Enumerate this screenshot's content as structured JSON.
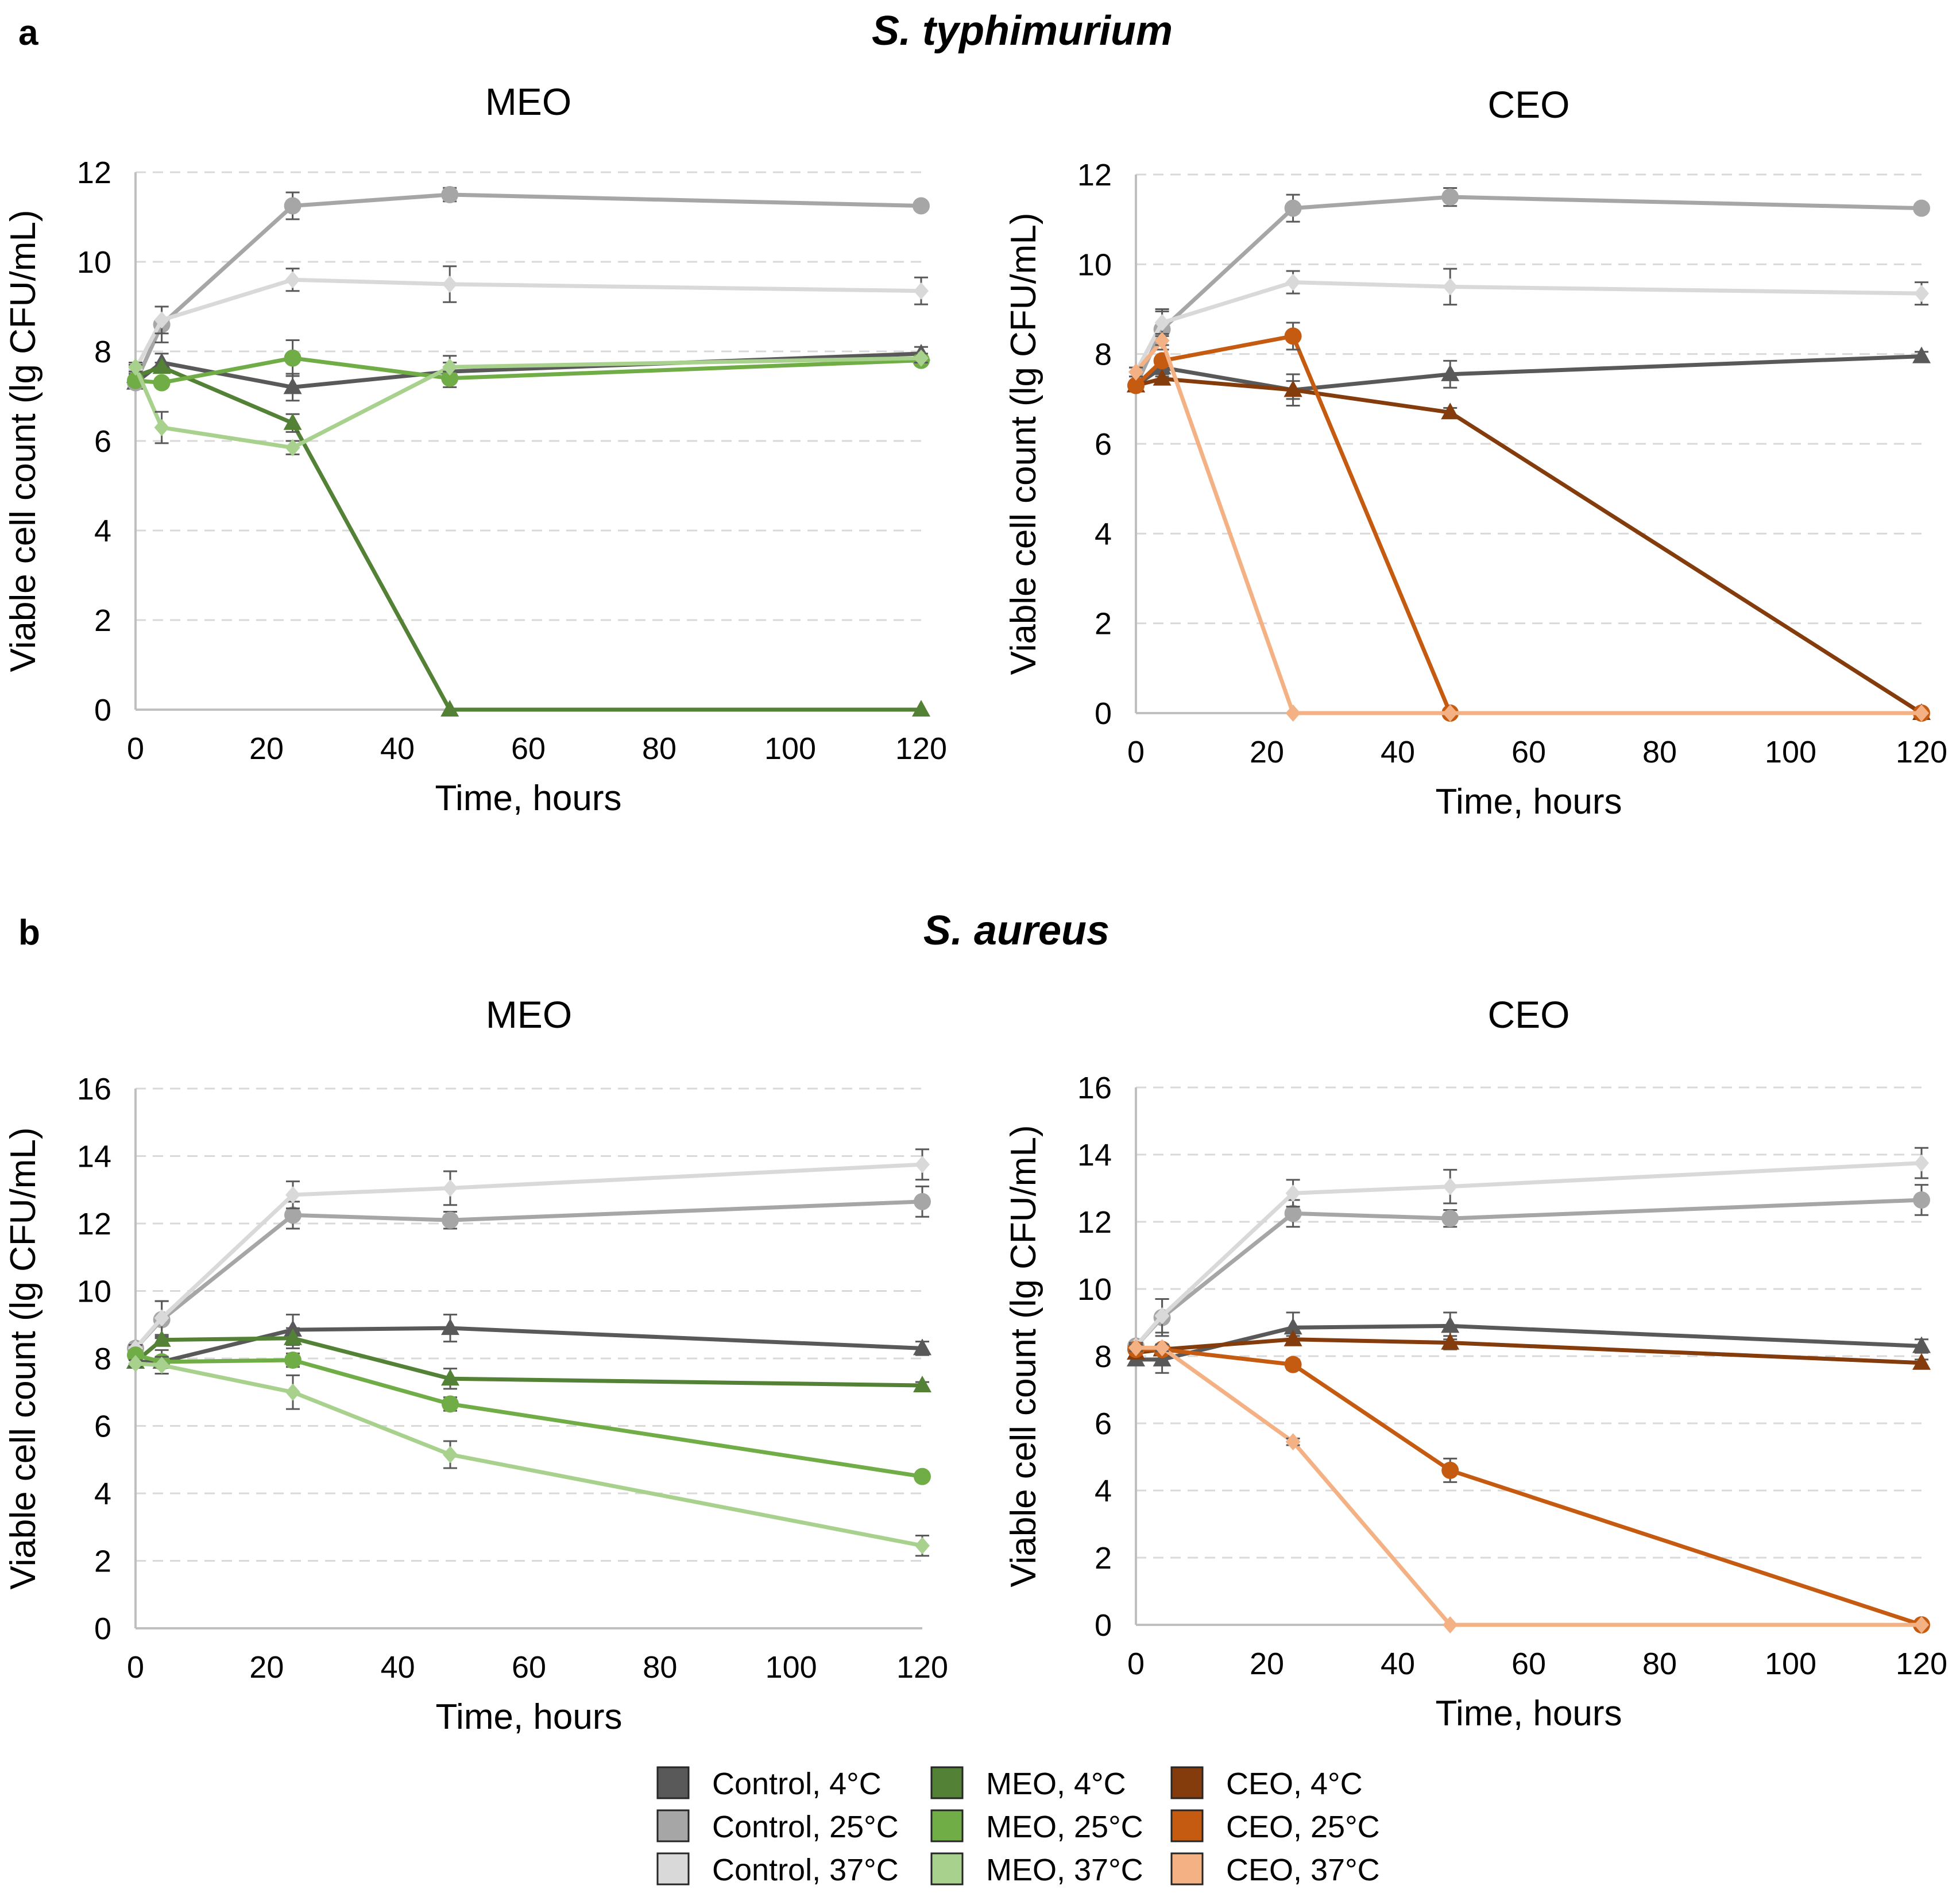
{
  "panels": [
    {
      "letter": "a",
      "organism": "S. typhimurium"
    },
    {
      "letter": "b",
      "organism": "S. aureus"
    }
  ],
  "series_styles": [
    {
      "name": "Control, 4°C",
      "color": "#595959",
      "marker": "triangle"
    },
    {
      "name": "Control, 25°C",
      "color": "#a6a6a6",
      "marker": "circle"
    },
    {
      "name": "Control, 37°C",
      "color": "#d9d9d9",
      "marker": "diamond"
    },
    {
      "name": "MEO, 4°C",
      "color": "#538135",
      "marker": "triangle"
    },
    {
      "name": "MEO, 25°C",
      "color": "#70ad47",
      "marker": "circle"
    },
    {
      "name": "MEO, 37°C",
      "color": "#a9d18e",
      "marker": "diamond"
    },
    {
      "name": "CEO, 4°C",
      "color": "#843c0c",
      "marker": "triangle"
    },
    {
      "name": "CEO, 25°C",
      "color": "#c55a11",
      "marker": "circle"
    },
    {
      "name": "CEO, 37°C",
      "color": "#f4b183",
      "marker": "diamond"
    }
  ],
  "chart_data": [
    {
      "type": "line",
      "panel": "a",
      "title": "MEO",
      "xlabel": "Time, hours",
      "ylabel": "Viable cell count (lg CFU/mL)",
      "xlim": [
        0,
        120
      ],
      "ylim": [
        0,
        12
      ],
      "xticks": [
        0,
        20,
        40,
        60,
        80,
        100,
        120
      ],
      "yticks": [
        0,
        2,
        4,
        6,
        8,
        10,
        12
      ],
      "grid": "horizontal dashed",
      "x": [
        0,
        4,
        24,
        48,
        120
      ],
      "series": [
        {
          "name": "Control, 4°C",
          "values": [
            7.3,
            7.75,
            7.2,
            7.55,
            7.95
          ],
          "errors": [
            0.1,
            0.2,
            0.3,
            0.35,
            0.15
          ]
        },
        {
          "name": "Control, 25°C",
          "values": [
            7.3,
            8.6,
            11.25,
            11.5,
            11.25
          ],
          "errors": [
            0.1,
            0.4,
            0.3,
            0.15,
            0.05
          ]
        },
        {
          "name": "Control, 37°C",
          "values": [
            7.6,
            8.7,
            9.6,
            9.5,
            9.35
          ],
          "errors": [
            0.1,
            0.3,
            0.25,
            0.4,
            0.3
          ]
        },
        {
          "name": "MEO, 4°C",
          "values": [
            7.45,
            7.65,
            6.4,
            0,
            0
          ],
          "errors": [
            0.1,
            0.1,
            0.2,
            0,
            0
          ]
        },
        {
          "name": "MEO, 25°C",
          "values": [
            7.35,
            7.3,
            7.85,
            7.4,
            7.8
          ],
          "errors": [
            0.1,
            0.1,
            0.4,
            0.1,
            0.1
          ]
        },
        {
          "name": "MEO, 37°C",
          "values": [
            7.65,
            6.3,
            5.85,
            7.65,
            7.85
          ],
          "errors": [
            0.1,
            0.35,
            0.15,
            0.1,
            0.1
          ]
        }
      ]
    },
    {
      "type": "line",
      "panel": "a",
      "title": "CEO",
      "xlabel": "Time, hours",
      "ylabel": "Viable cell count (lg CFU/mL)",
      "xlim": [
        0,
        120
      ],
      "ylim": [
        0,
        12
      ],
      "xticks": [
        0,
        20,
        40,
        60,
        80,
        100,
        120
      ],
      "yticks": [
        0,
        2,
        4,
        6,
        8,
        10,
        12
      ],
      "grid": "horizontal dashed",
      "x": [
        0,
        4,
        24,
        48,
        120
      ],
      "series": [
        {
          "name": "Control, 4°C",
          "values": [
            7.3,
            7.7,
            7.2,
            7.55,
            7.95
          ],
          "errors": [
            0.1,
            0.2,
            0.35,
            0.3,
            0.1
          ]
        },
        {
          "name": "Control, 25°C",
          "values": [
            7.3,
            8.55,
            11.25,
            11.5,
            11.25
          ],
          "errors": [
            0.1,
            0.45,
            0.3,
            0.2,
            0.05
          ]
        },
        {
          "name": "Control, 37°C",
          "values": [
            7.6,
            8.7,
            9.6,
            9.5,
            9.35
          ],
          "errors": [
            0.1,
            0.25,
            0.25,
            0.4,
            0.25
          ]
        },
        {
          "name": "CEO, 4°C",
          "values": [
            7.3,
            7.45,
            7.2,
            6.7,
            0
          ],
          "errors": [
            0.1,
            0.1,
            0.2,
            0.1,
            0
          ]
        },
        {
          "name": "CEO, 25°C",
          "values": [
            7.3,
            7.85,
            8.4,
            0,
            0
          ],
          "errors": [
            0.1,
            0.1,
            0.3,
            0,
            0
          ]
        },
        {
          "name": "CEO, 37°C",
          "values": [
            7.6,
            8.3,
            0,
            0,
            0
          ],
          "errors": [
            0.1,
            0.1,
            0,
            0,
            0
          ]
        }
      ]
    },
    {
      "type": "line",
      "panel": "b",
      "title": "MEO",
      "xlabel": "Time, hours",
      "ylabel": "Viable cell count (lg CFU/mL)",
      "xlim": [
        0,
        120
      ],
      "ylim": [
        0,
        16
      ],
      "xticks": [
        0,
        20,
        40,
        60,
        80,
        100,
        120
      ],
      "yticks": [
        0,
        2,
        4,
        6,
        8,
        10,
        12,
        14,
        16
      ],
      "grid": "horizontal dashed",
      "x": [
        0,
        4,
        24,
        48,
        120
      ],
      "series": [
        {
          "name": "Control, 4°C",
          "values": [
            7.9,
            7.9,
            8.85,
            8.9,
            8.3
          ],
          "errors": [
            0.1,
            0.35,
            0.45,
            0.4,
            0.2
          ]
        },
        {
          "name": "Control, 25°C",
          "values": [
            8.3,
            9.15,
            12.25,
            12.1,
            12.65
          ],
          "errors": [
            0.1,
            0.55,
            0.4,
            0.25,
            0.45
          ]
        },
        {
          "name": "Control, 37°C",
          "values": [
            8.3,
            9.2,
            12.85,
            13.05,
            13.75
          ],
          "errors": [
            0.1,
            0.5,
            0.4,
            0.5,
            0.45
          ]
        },
        {
          "name": "MEO, 4°C",
          "values": [
            7.9,
            8.55,
            8.6,
            7.4,
            7.2
          ],
          "errors": [
            0.1,
            0.1,
            0.3,
            0.3,
            0.1
          ]
        },
        {
          "name": "MEO, 25°C",
          "values": [
            8.1,
            7.9,
            7.95,
            6.65,
            4.5
          ],
          "errors": [
            0.1,
            0.15,
            0.2,
            0.2,
            0.1
          ]
        },
        {
          "name": "MEO, 37°C",
          "values": [
            7.85,
            7.8,
            7.0,
            5.15,
            2.45
          ],
          "errors": [
            0.1,
            0.25,
            0.5,
            0.4,
            0.3
          ]
        }
      ]
    },
    {
      "type": "line",
      "panel": "b",
      "title": "CEO",
      "xlabel": "Time, hours",
      "ylabel": "Viable cell count (lg CFU/mL)",
      "xlim": [
        0,
        120
      ],
      "ylim": [
        0,
        16
      ],
      "xticks": [
        0,
        20,
        40,
        60,
        80,
        100,
        120
      ],
      "yticks": [
        0,
        2,
        4,
        6,
        8,
        10,
        12,
        14,
        16
      ],
      "grid": "horizontal dashed",
      "x": [
        0,
        4,
        24,
        48,
        120
      ],
      "series": [
        {
          "name": "Control, 4°C",
          "values": [
            7.9,
            7.9,
            8.85,
            8.9,
            8.3
          ],
          "errors": [
            0.1,
            0.4,
            0.45,
            0.4,
            0.2
          ]
        },
        {
          "name": "Control, 25°C",
          "values": [
            8.3,
            9.15,
            12.25,
            12.1,
            12.65
          ],
          "errors": [
            0.1,
            0.55,
            0.4,
            0.25,
            0.45
          ]
        },
        {
          "name": "Control, 37°C",
          "values": [
            8.3,
            9.2,
            12.85,
            13.05,
            13.75
          ],
          "errors": [
            0.1,
            0.5,
            0.4,
            0.5,
            0.45
          ]
        },
        {
          "name": "CEO, 4°C",
          "values": [
            8.1,
            8.2,
            8.5,
            8.4,
            7.8
          ],
          "errors": [
            0.1,
            0.1,
            0.1,
            0.2,
            0.1
          ]
        },
        {
          "name": "CEO, 25°C",
          "values": [
            8.2,
            8.2,
            7.75,
            4.6,
            0
          ],
          "errors": [
            0.1,
            0.1,
            0.15,
            0.35,
            0
          ]
        },
        {
          "name": "CEO, 37°C",
          "values": [
            8.25,
            8.25,
            5.45,
            0,
            0
          ],
          "errors": [
            0.1,
            0.1,
            0.1,
            0,
            0
          ]
        }
      ]
    }
  ]
}
